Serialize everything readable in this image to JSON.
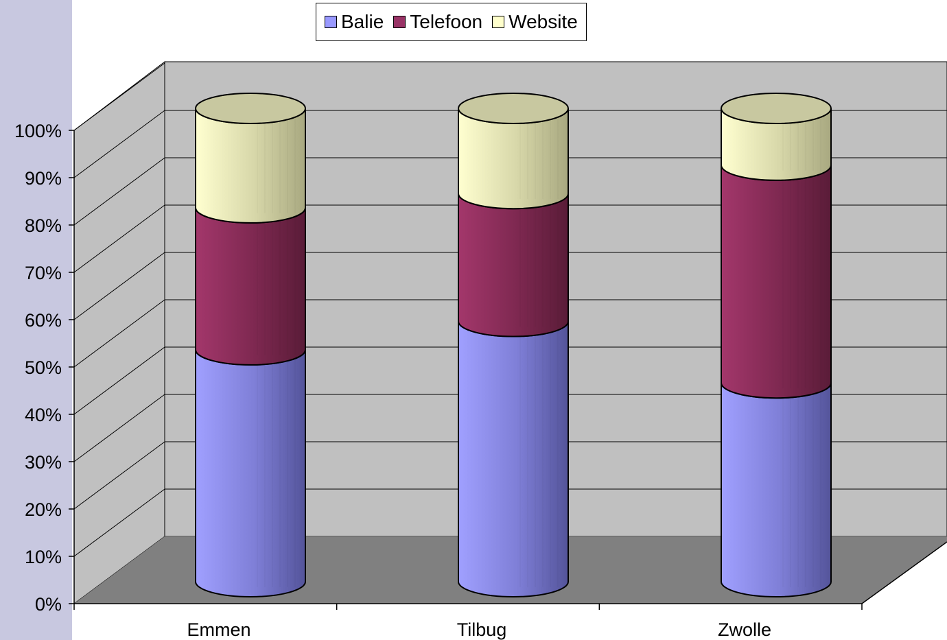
{
  "chart_data": {
    "type": "bar",
    "subtype": "100% stacked 3D cylinder",
    "title": "",
    "xlabel": "",
    "ylabel": "",
    "categories": [
      "Emmen",
      "Tilbug",
      "Zwolle"
    ],
    "series": [
      {
        "name": "Balie",
        "values": [
          49,
          55,
          42
        ],
        "color": "#9999ff"
      },
      {
        "name": "Telefoon",
        "values": [
          30,
          27,
          46
        ],
        "color": "#993366"
      },
      {
        "name": "Website",
        "values": [
          21,
          18,
          12
        ],
        "color": "#ffffcc"
      }
    ],
    "ylim": [
      0,
      100
    ],
    "yticks": [
      "0%",
      "10%",
      "20%",
      "30%",
      "40%",
      "50%",
      "60%",
      "70%",
      "80%",
      "90%",
      "100%"
    ],
    "grid": true,
    "legend_position": "top"
  }
}
